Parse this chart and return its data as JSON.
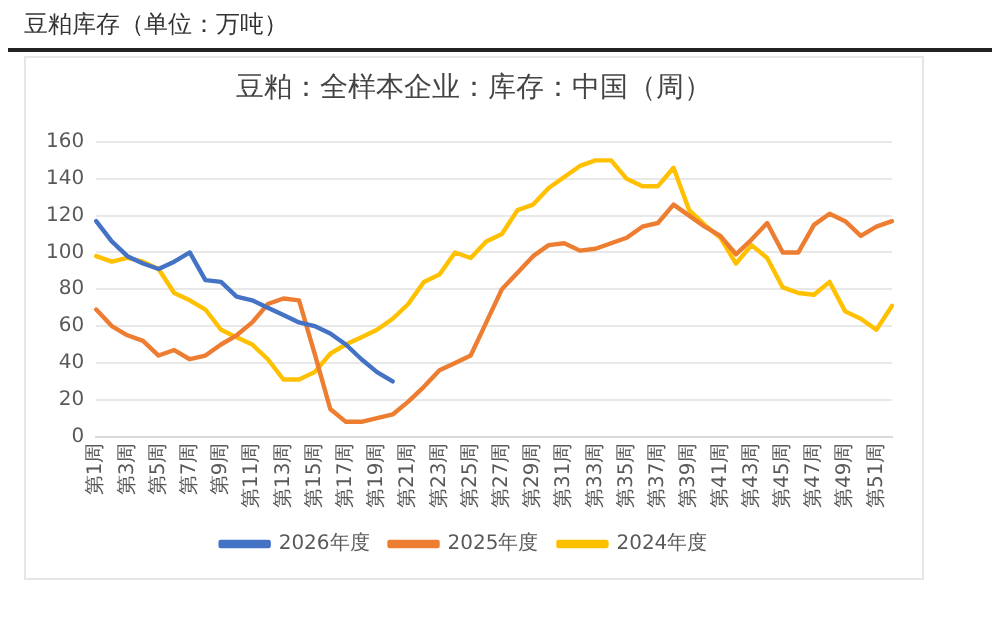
{
  "chart_data": {
    "type": "line",
    "title": "豆粕库存（单位：万吨）",
    "subtitle": "豆粕：全样本企业：库存：中国（周）",
    "categories": [
      "第1周",
      null,
      "第3周",
      null,
      "第5周",
      null,
      "第7周",
      null,
      "第9周",
      null,
      "第11周",
      null,
      "第13周",
      null,
      "第15周",
      null,
      "第17周",
      null,
      "第19周",
      null,
      "第21周",
      null,
      "第23周",
      null,
      "第25周",
      null,
      "第27周",
      null,
      "第29周",
      null,
      "第31周",
      null,
      "第33周",
      null,
      "第35周",
      null,
      "第37周",
      null,
      "第39周",
      null,
      "第41周",
      null,
      "第43周",
      null,
      "第45周",
      null,
      "第47周",
      null,
      "第49周",
      null,
      "第51周",
      null
    ],
    "series": [
      {
        "name": "2026年度",
        "color": "#4472c4",
        "values": [
          117,
          106,
          98,
          94,
          91,
          95,
          100,
          85,
          84,
          76,
          74,
          70,
          66,
          62,
          60,
          56,
          50,
          42,
          35,
          30,
          null,
          null,
          null,
          null,
          null,
          null,
          null,
          null,
          null,
          null,
          null,
          null,
          null,
          null,
          null,
          null,
          null,
          null,
          null,
          null,
          null,
          null,
          null,
          null,
          null,
          null,
          null,
          null,
          null,
          null,
          null,
          null
        ]
      },
      {
        "name": "2025年度",
        "color": "#ed7d31",
        "values": [
          69,
          60,
          55,
          52,
          44,
          47,
          42,
          44,
          50,
          55,
          62,
          72,
          75,
          74,
          45,
          15,
          8,
          8,
          10,
          12,
          19,
          27,
          36,
          40,
          44,
          62,
          80,
          89,
          98,
          104,
          105,
          101,
          102,
          105,
          108,
          114,
          116,
          126,
          120,
          114,
          109,
          99,
          107,
          116,
          100,
          100,
          115,
          121,
          117,
          109,
          114,
          117
        ]
      },
      {
        "name": "2024年度",
        "color": "#ffc000",
        "values": [
          98,
          95,
          97,
          95,
          91,
          78,
          74,
          69,
          58,
          54,
          50,
          42,
          31,
          31,
          35,
          45,
          50,
          54,
          58,
          64,
          72,
          84,
          88,
          100,
          97,
          106,
          110,
          123,
          126,
          135,
          141,
          147,
          150,
          150,
          140,
          136,
          136,
          146,
          123,
          115,
          108,
          94,
          104,
          97,
          81,
          78,
          77,
          84,
          68,
          64,
          58,
          71
        ]
      }
    ],
    "ylim": [
      0,
      160
    ],
    "yticks": [
      0,
      20,
      40,
      60,
      80,
      100,
      120,
      140,
      160
    ],
    "grid": "y",
    "legend": "bottom",
    "marker": "none",
    "line_style": "solid"
  }
}
